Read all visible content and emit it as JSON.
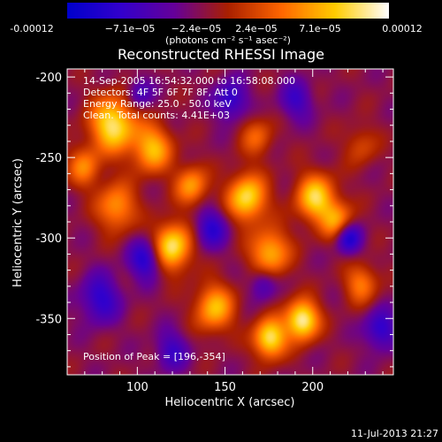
{
  "chart_data": {
    "type": "heatmap",
    "title": "Reconstructed RHESSI Image",
    "xlabel": "Heliocentric X (arcsec)",
    "ylabel": "Heliocentric Y (arcsec)",
    "xlim": [
      60,
      246
    ],
    "ylim": [
      -385,
      -195
    ],
    "xticks": [
      100,
      150,
      200
    ],
    "yticks": [
      -200,
      -250,
      -300,
      -350
    ],
    "colorbar": {
      "ticks": [
        "-0.00012",
        "−7.1e−05",
        "−2.4e−05",
        "2.4e−05",
        "7.1e−05",
        "0.00012"
      ],
      "units": "(photons cm⁻² s⁻¹ asec⁻²)",
      "range": [
        -0.00012,
        0.00012
      ],
      "colors": [
        "#0000cc",
        "#3300cc",
        "#660099",
        "#aa2000",
        "#ff6600",
        "#ffcc00",
        "#ffffff"
      ]
    },
    "annotations": [
      "14-Sep-2005 16:54:32.000 to 16:58:08.000",
      "Detectors: 4F 5F 6F 7F 8F, Att 0",
      "Energy Range: 25.0 - 50.0 keV",
      "Clean. Total counts: 4.41E+03"
    ],
    "peak_label": "Position of Peak = [196,-354]",
    "peak": [
      196,
      -354
    ]
  },
  "footer": "11-Jul-2013 21:27"
}
